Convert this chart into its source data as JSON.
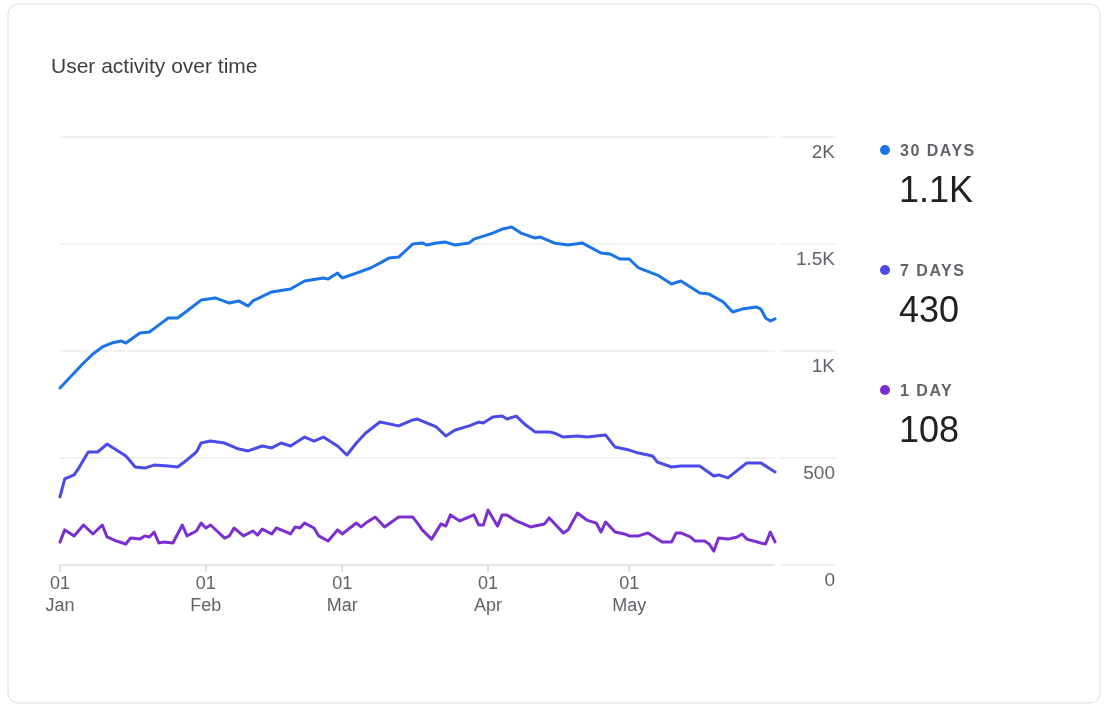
{
  "chart_data": {
    "type": "line",
    "title": "User activity over time",
    "xlim": [
      "--01-01",
      "--06-01"
    ],
    "xticks": [
      {
        "value": "--01-01",
        "label": "01\nJan"
      },
      {
        "value": "--02-01",
        "label": "01\nFeb"
      },
      {
        "value": "--03-01",
        "label": "01\nMar"
      },
      {
        "value": "--04-01",
        "label": "01\nApr"
      },
      {
        "value": "--05-01",
        "label": "01\nMay"
      }
    ],
    "ylim": [
      0,
      2000
    ],
    "yticks": [
      0,
      500,
      {
        "value": 1000,
        "label": "1K"
      },
      {
        "value": 1500,
        "label": "1.5K"
      },
      {
        "value": 2000,
        "label": "2K"
      }
    ],
    "grid": "y",
    "legend": "right",
    "marker": "none",
    "line_style": "solid",
    "annotations": [
      "1.1K",
      "430",
      "108"
    ],
    "series": [
      {
        "name": "30 DAYS",
        "color": "#1a73e8",
        "x": [
          "--01-01",
          "--01-03",
          "--01-04",
          "--01-06",
          "--01-08",
          "--01-10",
          "--01-12",
          "--01-14",
          "--01-15",
          "--01-18",
          "--01-20",
          "--01-22",
          "--01-24",
          "--01-26",
          "--01-28",
          "--01-31",
          "--02-03",
          "--02-06",
          "--02-08",
          "--02-10",
          "--02-11",
          "--02-15",
          "--02-19",
          "--02-22",
          "--02-26",
          "--02-27",
          "--02-29",
          "--03-01",
          "--03-04",
          "--03-07",
          "--03-09",
          "--03-11",
          "--03-13",
          "--03-16",
          "--03-18",
          "--03-19",
          "--03-21",
          "--03-23",
          "--03-25",
          "--03-28",
          "--03-29",
          "--04-02",
          "--04-04",
          "--04-06",
          "--04-08",
          "--04-11",
          "--04-12",
          "--04-15",
          "--04-18",
          "--04-21",
          "--04-25",
          "--04-27",
          "--04-29",
          "--05-01",
          "--05-03",
          "--05-07",
          "--05-09",
          "--05-10",
          "--05-12",
          "--05-16",
          "--05-18",
          "--05-21",
          "--05-23",
          "--05-25",
          "--05-28",
          "--05-29",
          "--05-30",
          "--05-31",
          "--06-01"
        ],
        "values": [
          827,
          874,
          897,
          944,
          986,
          1019,
          1037,
          1047,
          1037,
          1084,
          1089,
          1121,
          1154,
          1154,
          1187,
          1238,
          1248,
          1224,
          1234,
          1210,
          1234,
          1276,
          1290,
          1327,
          1341,
          1336,
          1364,
          1341,
          1364,
          1388,
          1411,
          1435,
          1439,
          1500,
          1505,
          1495,
          1505,
          1509,
          1495,
          1505,
          1523,
          1551,
          1570,
          1579,
          1551,
          1528,
          1533,
          1505,
          1495,
          1505,
          1458,
          1453,
          1430,
          1430,
          1388,
          1355,
          1327,
          1313,
          1327,
          1271,
          1266,
          1229,
          1182,
          1196,
          1206,
          1196,
          1154,
          1140,
          1150
        ]
      },
      {
        "name": "7 DAYS",
        "color": "#4a4ae8",
        "x": [
          "--01-01",
          "--01-02",
          "--01-04",
          "--01-05",
          "--01-07",
          "--01-09",
          "--01-11",
          "--01-13",
          "--01-15",
          "--01-17",
          "--01-19",
          "--01-21",
          "--01-24",
          "--01-26",
          "--01-28",
          "--01-30",
          "--01-31",
          "--02-02",
          "--02-05",
          "--02-08",
          "--02-10",
          "--02-13",
          "--02-15",
          "--02-17",
          "--02-19",
          "--02-22",
          "--02-24",
          "--02-26",
          "--02-29",
          "--03-02",
          "--03-04",
          "--03-06",
          "--03-09",
          "--03-13",
          "--03-16",
          "--03-17",
          "--03-21",
          "--03-23",
          "--03-25",
          "--03-28",
          "--03-30",
          "--03-31",
          "--04-02",
          "--04-04",
          "--04-05",
          "--04-07",
          "--04-09",
          "--04-11",
          "--04-14",
          "--04-15",
          "--04-17",
          "--04-20",
          "--04-22",
          "--04-26",
          "--04-28",
          "--05-01",
          "--05-03",
          "--05-06",
          "--05-07",
          "--05-10",
          "--05-12",
          "--05-14",
          "--05-16",
          "--05-19",
          "--05-20",
          "--05-22",
          "--05-26",
          "--05-29",
          "--05-31",
          "--06-01"
        ],
        "values": [
          318,
          402,
          421,
          453,
          528,
          528,
          565,
          537,
          509,
          458,
          453,
          467,
          463,
          458,
          491,
          528,
          570,
          579,
          570,
          542,
          533,
          556,
          547,
          570,
          556,
          598,
          579,
          598,
          556,
          514,
          570,
          617,
          668,
          650,
          678,
          682,
          645,
          603,
          631,
          650,
          668,
          664,
          692,
          696,
          682,
          696,
          654,
          622,
          622,
          617,
          598,
          603,
          598,
          607,
          551,
          537,
          523,
          509,
          481,
          458,
          463,
          463,
          463,
          416,
          421,
          407,
          477,
          477,
          449,
          435
        ]
      },
      {
        "name": "1 DAY",
        "color": "#7b2fd0",
        "x": [
          "--01-01",
          "--01-02",
          "--01-04",
          "--01-06",
          "--01-08",
          "--01-10",
          "--01-11",
          "--01-13",
          "--01-15",
          "--01-16",
          "--01-18",
          "--01-19",
          "--01-20",
          "--01-21",
          "--01-22",
          "--01-23",
          "--01-25",
          "--01-27",
          "--01-28",
          "--01-30",
          "--01-31",
          "--02-01",
          "--02-02",
          "--02-05",
          "--02-06",
          "--02-07",
          "--02-09",
          "--02-11",
          "--02-12",
          "--02-13",
          "--02-15",
          "--02-16",
          "--02-19",
          "--02-20",
          "--02-21",
          "--02-22",
          "--02-24",
          "--02-25",
          "--02-27",
          "--02-29",
          "--03-01",
          "--03-04",
          "--03-05",
          "--03-06",
          "--03-08",
          "--03-10",
          "--03-13",
          "--03-16",
          "--03-17",
          "--03-18",
          "--03-20",
          "--03-22",
          "--03-23",
          "--03-24",
          "--03-26",
          "--03-29",
          "--03-30",
          "--03-31",
          "--04-01",
          "--04-03",
          "--04-04",
          "--04-05",
          "--04-07",
          "--04-10",
          "--04-13",
          "--04-14",
          "--04-17",
          "--04-18",
          "--04-20",
          "--04-22",
          "--04-24",
          "--04-25",
          "--04-26",
          "--04-28",
          "--04-30",
          "--05-01",
          "--05-03",
          "--05-05",
          "--05-06",
          "--05-08",
          "--05-10",
          "--05-11",
          "--05-12",
          "--05-14",
          "--05-15",
          "--05-17",
          "--05-18",
          "--05-19",
          "--05-20",
          "--05-22",
          "--05-24",
          "--05-25",
          "--05-26",
          "--05-29",
          "--05-30",
          "--05-31",
          "--06-01"
        ],
        "values": [
          107,
          164,
          136,
          187,
          145,
          187,
          131,
          112,
          98,
          126,
          121,
          136,
          131,
          154,
          103,
          107,
          103,
          187,
          136,
          159,
          196,
          173,
          187,
          126,
          136,
          173,
          136,
          159,
          140,
          168,
          145,
          173,
          145,
          178,
          173,
          196,
          173,
          136,
          112,
          164,
          145,
          196,
          178,
          196,
          224,
          178,
          224,
          224,
          196,
          164,
          121,
          192,
          182,
          234,
          206,
          234,
          187,
          187,
          257,
          182,
          234,
          234,
          206,
          178,
          192,
          220,
          150,
          164,
          243,
          210,
          196,
          154,
          201,
          154,
          145,
          136,
          136,
          150,
          136,
          107,
          107,
          150,
          150,
          131,
          112,
          112,
          98,
          65,
          126,
          121,
          131,
          145,
          121,
          103,
          98,
          154,
          108
        ]
      }
    ]
  }
}
